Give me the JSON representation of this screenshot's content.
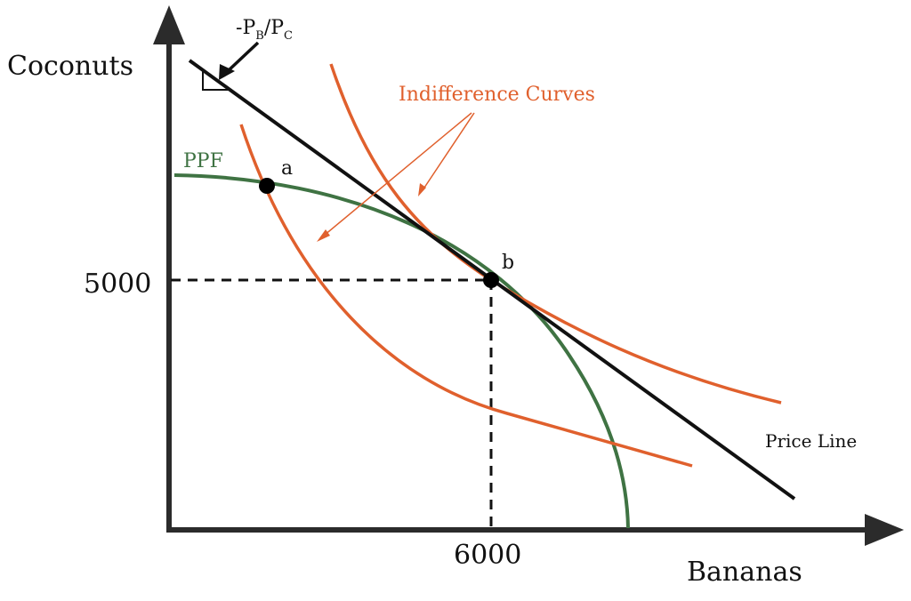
{
  "axes": {
    "y_label": "Coconuts",
    "x_label": "Bananas",
    "y_tick": "5000",
    "x_tick": "6000"
  },
  "labels": {
    "ppf": "PPF",
    "indifference_curves": "Indifference Curves",
    "price_line": "Price Line",
    "point_a": "a",
    "point_b": "b",
    "slope": {
      "sign": "-",
      "p1": "P",
      "p1_sub": "B",
      "slash": "/",
      "p2": "P",
      "p2_sub": "C"
    }
  },
  "colors": {
    "axis": "#2b2b2b",
    "ppf": "#3f7343",
    "indifference": "#e0602d",
    "price_line": "#111111",
    "dashed": "#111111",
    "point": "#000000"
  }
}
